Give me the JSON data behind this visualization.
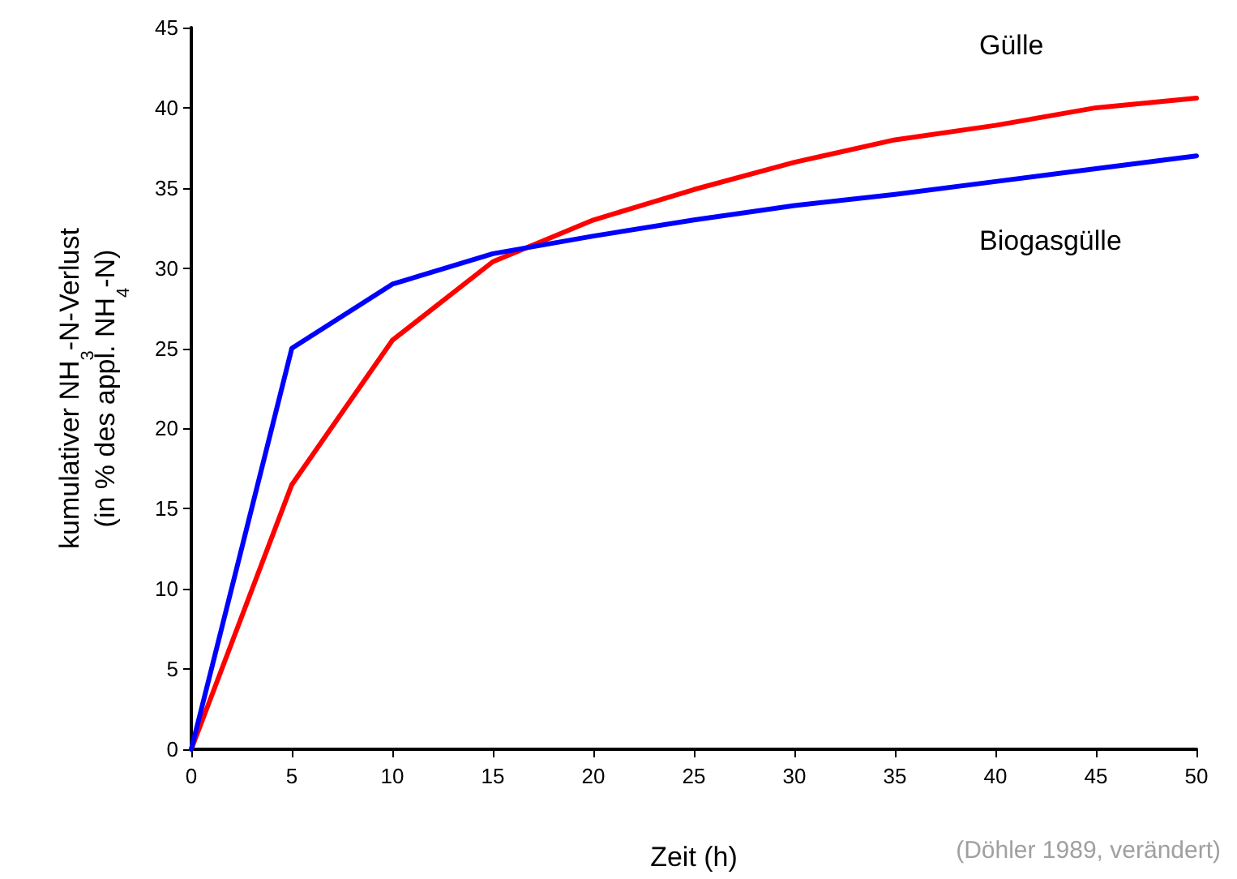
{
  "chart_data": {
    "type": "line",
    "xlabel": "Zeit (h)",
    "ylabel": "kumulativer NH$_{3}$-N-Verlust\n(in % des appl. NH$_{4}$-N)",
    "x": [
      0,
      5,
      10,
      15,
      20,
      25,
      30,
      35,
      40,
      45,
      50
    ],
    "series": [
      {
        "name": "Gülle",
        "color": "#ff0000",
        "values": [
          0,
          16.5,
          25.5,
          30.4,
          33,
          34.9,
          36.6,
          38,
          38.9,
          40,
          40.6
        ]
      },
      {
        "name": "Biogasgülle",
        "color": "#0000ff",
        "values": [
          0,
          25,
          29,
          30.9,
          32,
          33,
          33.9,
          34.6,
          35.4,
          36.2,
          37
        ]
      }
    ],
    "xlim": [
      0,
      50
    ],
    "xticks": [
      0,
      5,
      10,
      15,
      20,
      25,
      30,
      35,
      40,
      45,
      50
    ],
    "ylim": [
      0,
      45
    ],
    "yticks": [
      0,
      5,
      10,
      15,
      20,
      25,
      30,
      35,
      40,
      45
    ],
    "annotations": [
      "(Döhler 1989, verändert)"
    ],
    "grid": false,
    "legend": false,
    "marker": "none",
    "line_style": "solid"
  }
}
